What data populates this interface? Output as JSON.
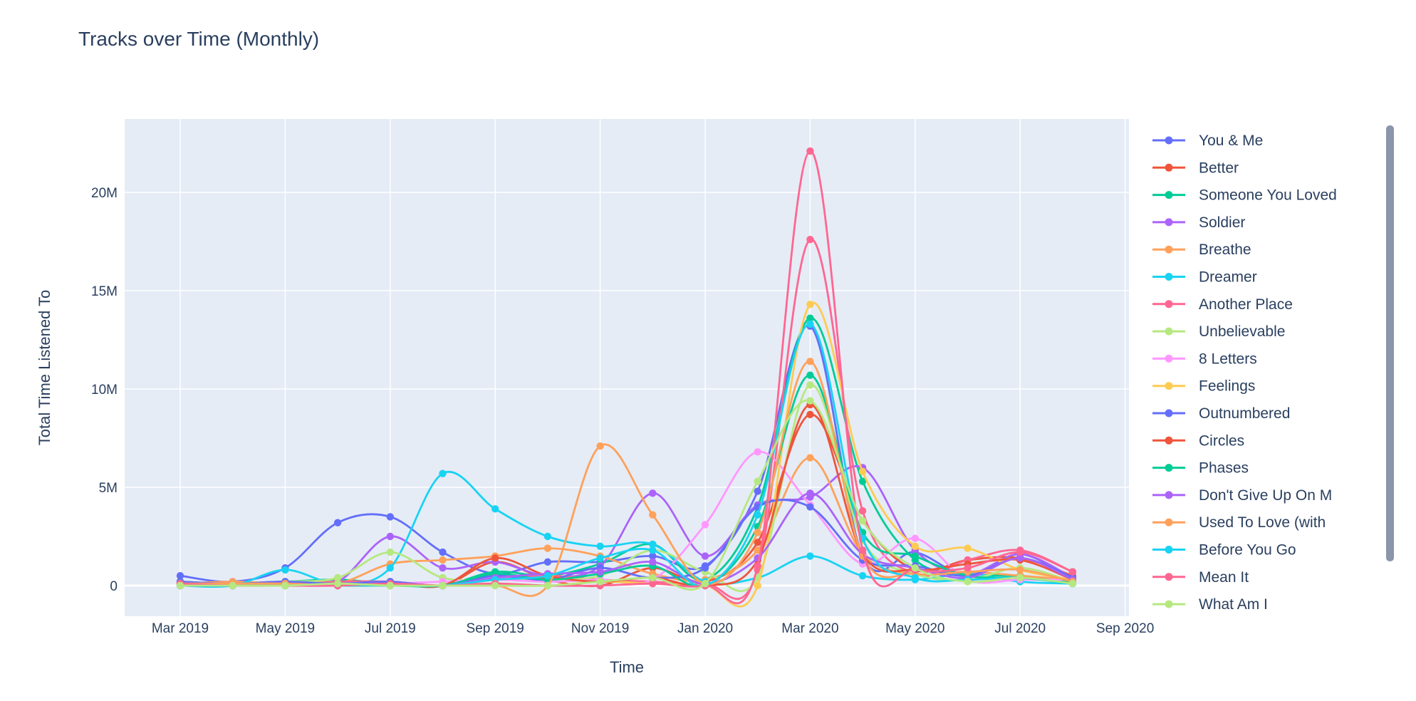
{
  "chart_data": {
    "type": "line",
    "title": "Tracks over Time (Monthly)",
    "xlabel": "Time",
    "ylabel": "Total Time Listened To",
    "ylim": [
      -1.5,
      23.8
    ],
    "y_ticks": [
      {
        "v": 0,
        "label": "0"
      },
      {
        "v": 5,
        "label": "5M"
      },
      {
        "v": 10,
        "label": "10M"
      },
      {
        "v": 15,
        "label": "15M"
      },
      {
        "v": 20,
        "label": "20M"
      }
    ],
    "x_ticks": [
      "Mar 2019",
      "May 2019",
      "Jul 2019",
      "Sep 2019",
      "Nov 2019",
      "Jan 2020",
      "Mar 2020",
      "May 2020",
      "Jul 2020",
      "Sep 2020"
    ],
    "x": [
      "Mar 2019",
      "Apr 2019",
      "May 2019",
      "Jun 2019",
      "Jul 2019",
      "Aug 2019",
      "Sep 2019",
      "Oct 2019",
      "Nov 2019",
      "Dec 2019",
      "Jan 2020",
      "Feb 2020",
      "Mar 2020",
      "Apr 2020",
      "May 2020",
      "Jun 2020",
      "Jul 2020",
      "Aug 2020"
    ],
    "value_unit": "millions",
    "series": [
      {
        "name": "You & Me",
        "color": "#636efa",
        "values": [
          0.5,
          0.2,
          0.9,
          3.2,
          3.5,
          1.7,
          0.6,
          1.2,
          1.2,
          1.5,
          1.0,
          4.8,
          13.2,
          1.5,
          1.7,
          0.5,
          1.6,
          0.3
        ]
      },
      {
        "name": "Better",
        "color": "#ef553b",
        "values": [
          0.2,
          0.1,
          0.2,
          0.1,
          0.2,
          0.0,
          1.2,
          0.3,
          0.0,
          0.9,
          0.2,
          2.2,
          8.7,
          3.3,
          0.8,
          1.3,
          1.4,
          0.5
        ]
      },
      {
        "name": "Someone You Loved",
        "color": "#00cc96",
        "values": [
          0.2,
          0.1,
          0.2,
          0.3,
          0.1,
          0.0,
          0.7,
          0.5,
          1.1,
          2.1,
          0.3,
          4.0,
          13.6,
          5.3,
          1.3,
          0.6,
          0.5,
          0.2
        ]
      },
      {
        "name": "Soldier",
        "color": "#ab63fa",
        "values": [
          0.1,
          0.1,
          0.1,
          0.2,
          2.5,
          0.9,
          1.2,
          0.5,
          1.0,
          4.7,
          1.5,
          4.1,
          4.5,
          6.0,
          1.8,
          0.6,
          1.6,
          0.4
        ]
      },
      {
        "name": "Breathe",
        "color": "#ffa15a",
        "values": [
          0.1,
          0.2,
          0.1,
          0.1,
          1.1,
          1.3,
          1.5,
          1.9,
          1.5,
          0.6,
          0.3,
          1.8,
          6.5,
          1.6,
          0.6,
          0.7,
          0.5,
          0.3
        ]
      },
      {
        "name": "Dreamer",
        "color": "#19d3f3",
        "values": [
          0.0,
          0.0,
          0.8,
          0.1,
          0.9,
          5.7,
          3.9,
          2.5,
          2.0,
          2.1,
          0.2,
          0.4,
          1.5,
          0.5,
          0.3,
          0.6,
          0.2,
          0.1
        ]
      },
      {
        "name": "Another Place",
        "color": "#ff6692",
        "values": [
          0.1,
          0.1,
          0.1,
          0.2,
          0.2,
          0.0,
          0.3,
          0.5,
          0.3,
          0.2,
          0.1,
          0.8,
          17.6,
          3.8,
          0.6,
          1.3,
          1.8,
          0.7
        ]
      },
      {
        "name": "Unbelievable",
        "color": "#b6e880",
        "values": [
          0.1,
          0.1,
          0.2,
          0.4,
          1.7,
          0.4,
          0.3,
          0.3,
          0.5,
          1.8,
          0.7,
          0.4,
          10.2,
          2.3,
          0.6,
          0.3,
          0.9,
          0.2
        ]
      },
      {
        "name": "8 Letters",
        "color": "#ff97ff",
        "values": [
          0.0,
          0.1,
          0.0,
          0.0,
          0.1,
          0.2,
          0.3,
          0.2,
          0.3,
          0.3,
          3.1,
          6.8,
          4.1,
          1.1,
          2.4,
          0.3,
          0.3,
          0.3
        ]
      },
      {
        "name": "Feelings",
        "color": "#fecb52",
        "values": [
          0.0,
          0.1,
          0.0,
          0.0,
          0.0,
          0.0,
          0.1,
          0.0,
          0.2,
          0.1,
          0.0,
          0.0,
          14.3,
          5.8,
          2.0,
          1.9,
          0.8,
          0.3
        ]
      },
      {
        "name": "Outnumbered",
        "color": "#636efa",
        "values": [
          0.2,
          0.1,
          0.2,
          0.1,
          0.2,
          0.0,
          0.5,
          0.3,
          0.9,
          0.4,
          0.9,
          4.0,
          4.0,
          1.3,
          1.0,
          0.5,
          1.4,
          0.4
        ]
      },
      {
        "name": "Circles",
        "color": "#ef553b",
        "values": [
          0.1,
          0.0,
          0.1,
          0.0,
          0.1,
          0.0,
          1.4,
          0.5,
          0.2,
          0.4,
          0.0,
          1.3,
          9.2,
          1.6,
          0.8,
          1.1,
          1.3,
          0.3
        ]
      },
      {
        "name": "Phases",
        "color": "#00cc96",
        "values": [
          0.0,
          0.0,
          0.0,
          0.0,
          0.0,
          0.0,
          0.6,
          0.3,
          0.6,
          1.0,
          0.0,
          3.0,
          10.7,
          2.7,
          1.5,
          0.5,
          0.4,
          0.1
        ]
      },
      {
        "name": "Don't Give Up On M",
        "color": "#ab63fa",
        "values": [
          0.0,
          0.0,
          0.1,
          0.0,
          0.1,
          0.0,
          0.4,
          0.6,
          0.7,
          1.2,
          0.1,
          1.4,
          4.7,
          1.6,
          0.9,
          0.4,
          1.4,
          0.3
        ]
      },
      {
        "name": "Used To Love (with",
        "color": "#ffa15a",
        "values": [
          0.1,
          0.1,
          0.1,
          0.0,
          0.0,
          0.0,
          0.0,
          0.0,
          7.1,
          3.6,
          0.1,
          2.7,
          11.4,
          1.5,
          0.6,
          0.7,
          0.8,
          0.2
        ]
      },
      {
        "name": "Before You Go",
        "color": "#19d3f3",
        "values": [
          0.0,
          0.0,
          0.0,
          0.0,
          0.0,
          0.0,
          0.3,
          0.5,
          1.4,
          1.8,
          0.0,
          3.6,
          13.3,
          2.4,
          0.4,
          0.3,
          0.4,
          0.1
        ]
      },
      {
        "name": "Mean It",
        "color": "#ff6692",
        "values": [
          0.1,
          0.0,
          0.0,
          0.0,
          0.1,
          0.0,
          0.1,
          0.0,
          0.0,
          0.1,
          0.0,
          1.0,
          22.1,
          1.8,
          0.8,
          0.9,
          1.7,
          0.7
        ]
      },
      {
        "name": "What Am I",
        "color": "#b6e880",
        "values": [
          0.0,
          0.0,
          0.0,
          0.1,
          0.0,
          0.0,
          0.0,
          0.0,
          0.2,
          0.4,
          0.1,
          5.3,
          9.4,
          3.3,
          0.9,
          0.2,
          0.4,
          0.1
        ]
      }
    ]
  }
}
